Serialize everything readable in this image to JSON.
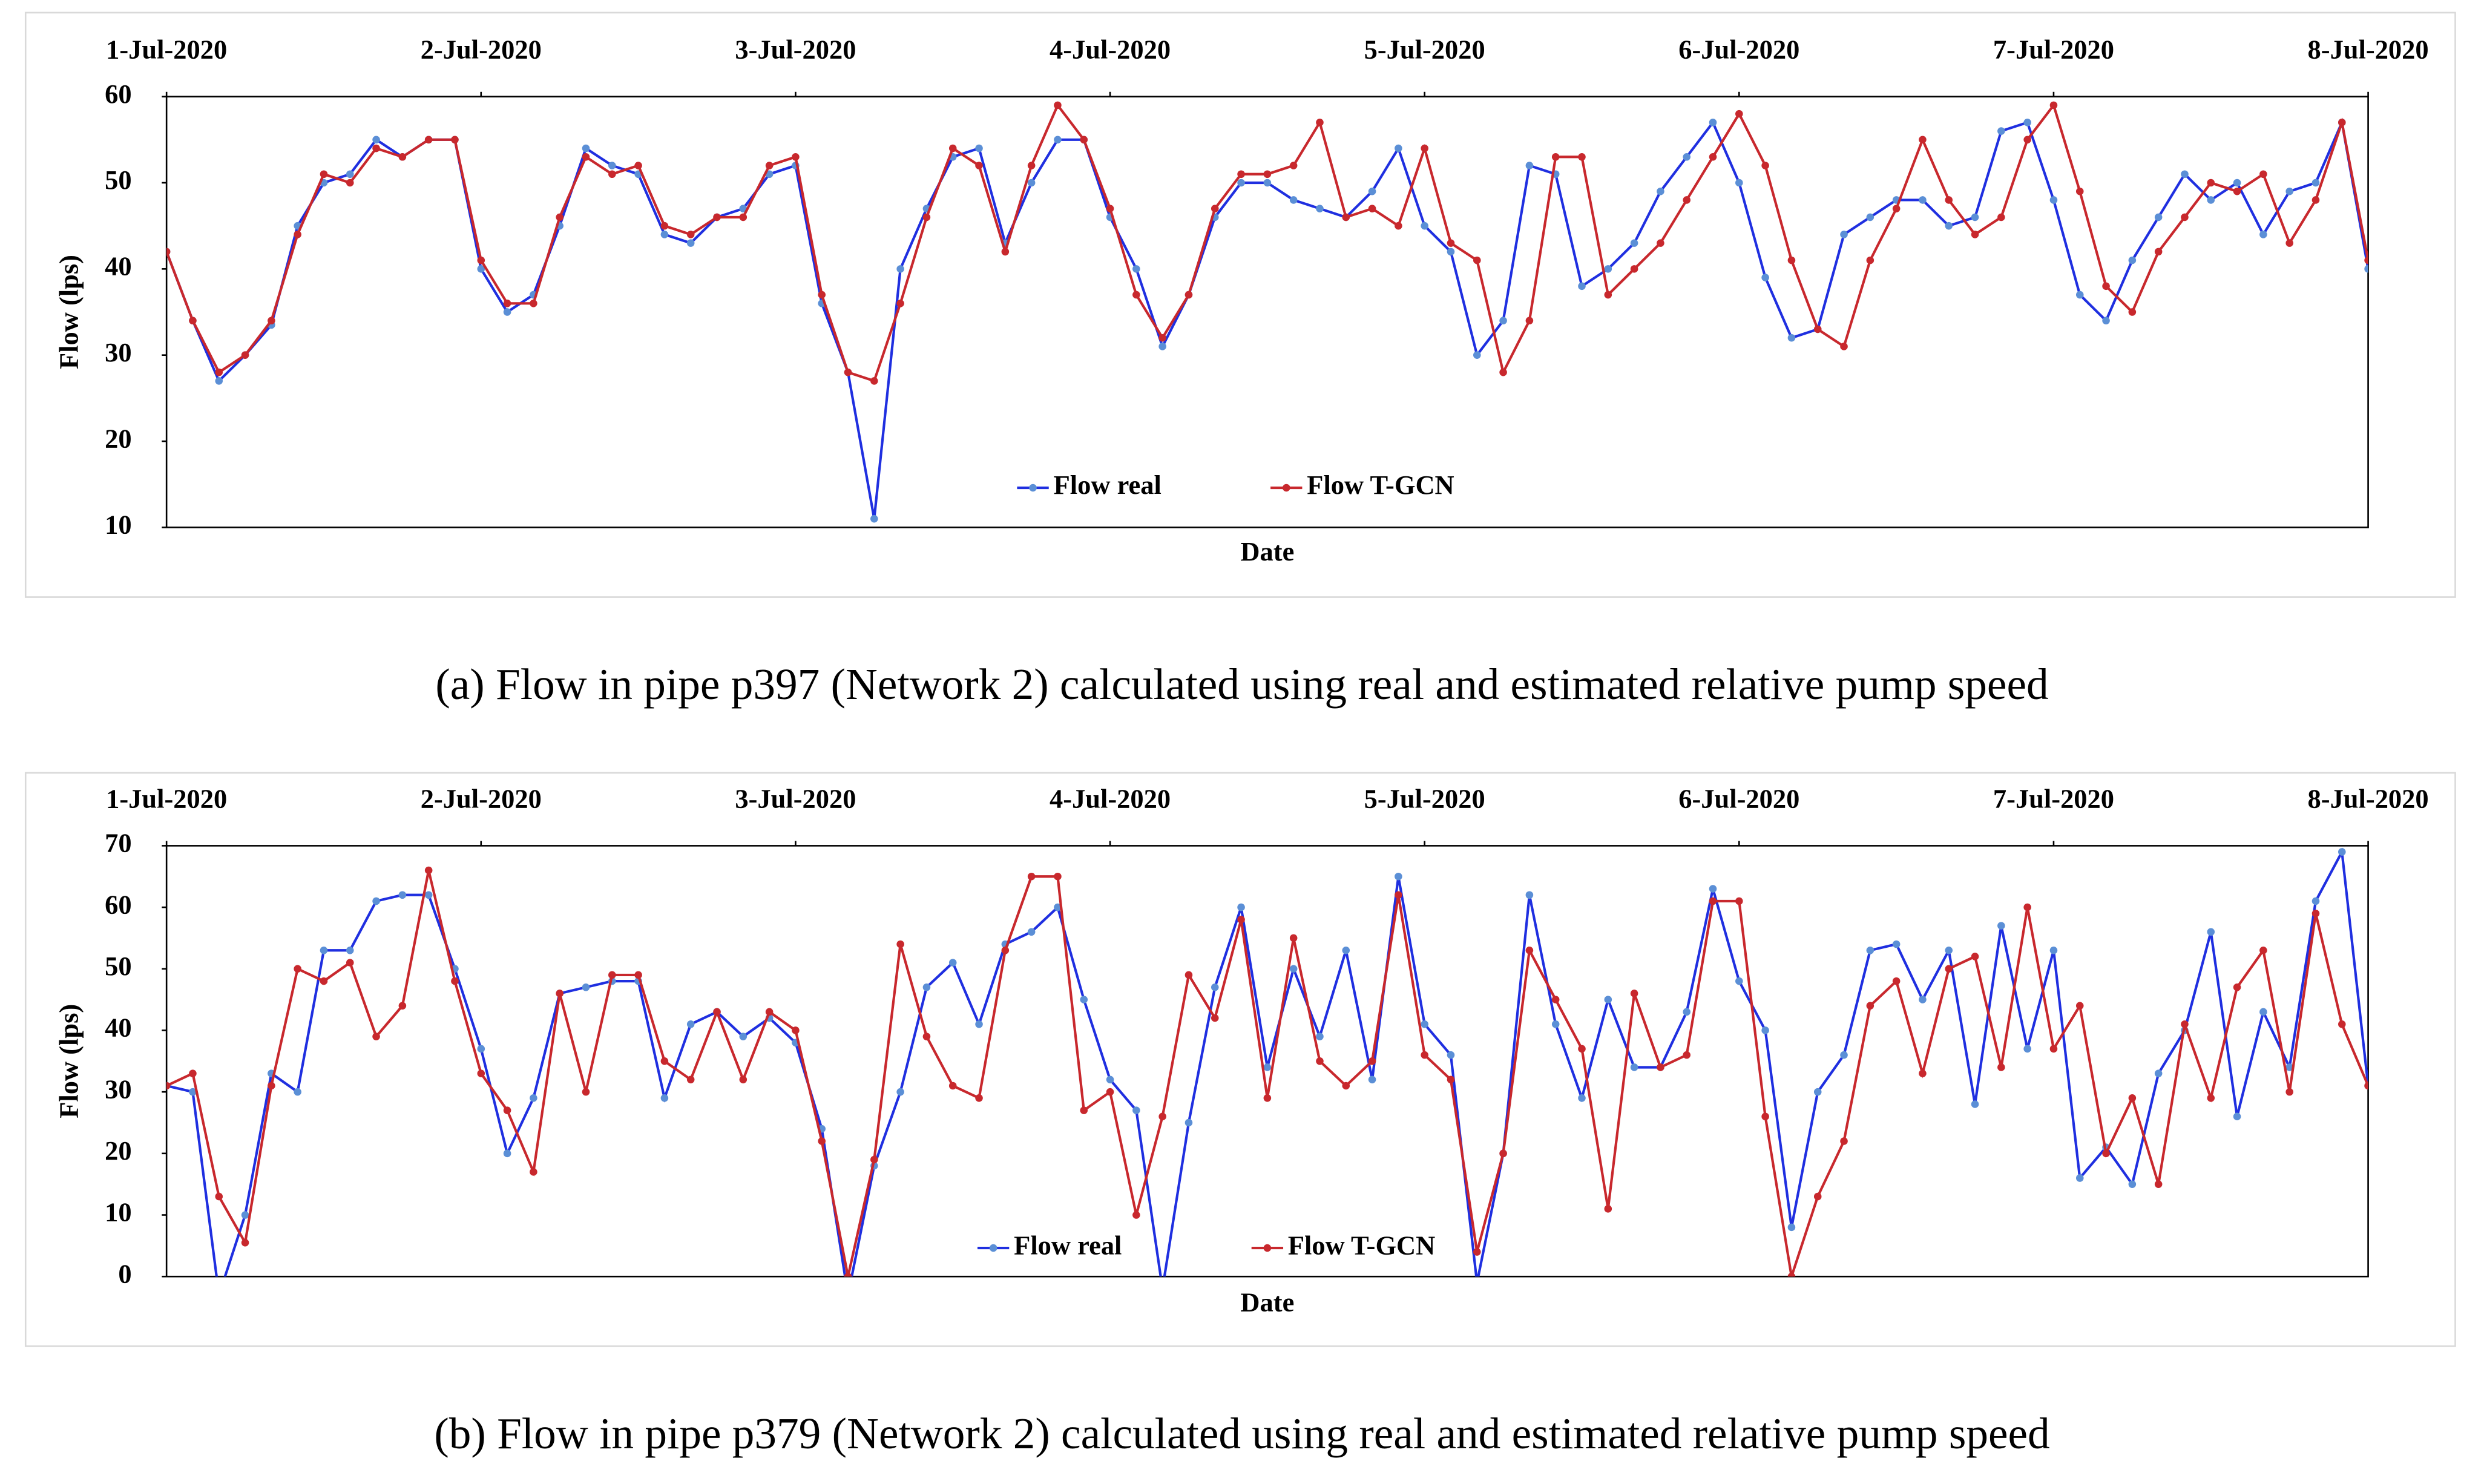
{
  "chart_data": [
    {
      "type": "line",
      "caption": "(a) Flow in pipe p397 (Network 2) calculated using real and estimated relative pump speed",
      "x_label": "Date",
      "y_label": "Flow (lps)",
      "x": [
        0,
        2,
        4,
        6,
        8,
        10,
        12,
        14,
        16,
        18,
        20,
        22,
        24,
        26,
        28,
        30,
        32,
        34,
        36,
        38,
        40,
        42,
        44,
        46,
        48,
        50,
        52,
        54,
        56,
        58,
        60,
        62,
        64,
        66,
        68,
        70,
        72,
        74,
        76,
        78,
        80,
        82,
        84,
        86,
        88,
        90,
        92,
        94,
        96,
        98,
        100,
        102,
        104,
        106,
        108,
        110,
        112,
        114,
        116,
        118,
        120,
        122,
        124,
        126,
        128,
        130,
        132,
        134,
        136,
        138,
        140,
        142,
        144,
        146,
        148,
        150,
        152,
        154,
        156,
        158,
        160,
        162,
        164,
        166,
        168
      ],
      "xlim": [
        0,
        168
      ],
      "xticks": [
        {
          "value": 0,
          "label": "1-Jul-2020"
        },
        {
          "value": 24,
          "label": "2-Jul-2020"
        },
        {
          "value": 48,
          "label": "3-Jul-2020"
        },
        {
          "value": 72,
          "label": "4-Jul-2020"
        },
        {
          "value": 96,
          "label": "5-Jul-2020"
        },
        {
          "value": 120,
          "label": "6-Jul-2020"
        },
        {
          "value": 144,
          "label": "7-Jul-2020"
        },
        {
          "value": 168,
          "label": "8-Jul-2020"
        }
      ],
      "ylim": [
        10,
        60
      ],
      "yticks": [
        10,
        20,
        30,
        40,
        50,
        60
      ],
      "grid": false,
      "legend": "lower center",
      "series": [
        {
          "name": "Flow real",
          "color": "#1f2fe0",
          "marker_color": "#5b8fd6",
          "values": [
            42,
            34,
            27,
            30,
            33.5,
            45,
            50,
            51,
            55,
            53,
            55,
            55,
            40,
            35,
            37,
            45,
            54,
            52,
            51,
            44,
            43,
            46,
            47,
            51,
            52,
            36,
            28,
            11,
            40,
            47,
            53,
            54,
            43,
            50,
            55,
            55,
            46,
            40,
            31,
            37,
            46,
            50,
            50,
            48,
            47,
            46,
            49,
            54,
            45,
            42,
            30,
            34,
            52,
            51,
            38,
            40,
            43,
            49,
            53,
            57,
            50,
            39,
            32,
            33,
            44,
            46,
            48,
            48,
            45,
            46,
            56,
            57,
            48,
            37,
            34,
            41,
            46,
            51,
            48,
            50,
            44,
            49,
            50,
            57,
            40
          ]
        },
        {
          "name": "Flow T-GCN",
          "color": "#c8282d",
          "marker_color": "#c8282d",
          "values": [
            42,
            34,
            28,
            30,
            34,
            44,
            51,
            50,
            54,
            53,
            55,
            55,
            41,
            36,
            36,
            46,
            53,
            51,
            52,
            45,
            44,
            46,
            46,
            52,
            53,
            37,
            28,
            27,
            36,
            46,
            54,
            52,
            42,
            52,
            59,
            55,
            47,
            37,
            32,
            37,
            47,
            51,
            51,
            52,
            57,
            46,
            47,
            45,
            54,
            43,
            41,
            28,
            34,
            53,
            53,
            37,
            40,
            43,
            48,
            53,
            58,
            52,
            41,
            33,
            31,
            41,
            47,
            55,
            48,
            44,
            46,
            55,
            59,
            49,
            38,
            35,
            42,
            46,
            50,
            49,
            51,
            43,
            48,
            57,
            41
          ]
        }
      ]
    },
    {
      "type": "line",
      "caption": "(b) Flow in pipe p379 (Network 2) calculated using real and estimated relative pump speed",
      "x_label": "Date",
      "y_label": "Flow (lps)",
      "x": [
        0,
        2,
        4,
        6,
        8,
        10,
        12,
        14,
        16,
        18,
        20,
        22,
        24,
        26,
        28,
        30,
        32,
        34,
        36,
        38,
        40,
        42,
        44,
        46,
        48,
        50,
        52,
        54,
        56,
        58,
        60,
        62,
        64,
        66,
        68,
        70,
        72,
        74,
        76,
        78,
        80,
        82,
        84,
        86,
        88,
        90,
        92,
        94,
        96,
        98,
        100,
        102,
        104,
        106,
        108,
        110,
        112,
        114,
        116,
        118,
        120,
        122,
        124,
        126,
        128,
        130,
        132,
        134,
        136,
        138,
        140,
        142,
        144,
        146,
        148,
        150,
        152,
        154,
        156,
        158,
        160,
        162,
        164,
        166,
        168
      ],
      "xlim": [
        0,
        168
      ],
      "xticks": [
        {
          "value": 0,
          "label": "1-Jul-2020"
        },
        {
          "value": 24,
          "label": "2-Jul-2020"
        },
        {
          "value": 48,
          "label": "3-Jul-2020"
        },
        {
          "value": 72,
          "label": "4-Jul-2020"
        },
        {
          "value": 96,
          "label": "5-Jul-2020"
        },
        {
          "value": 120,
          "label": "6-Jul-2020"
        },
        {
          "value": 144,
          "label": "7-Jul-2020"
        },
        {
          "value": 168,
          "label": "8-Jul-2020"
        }
      ],
      "ylim": [
        0,
        70
      ],
      "yticks": [
        0,
        10,
        20,
        30,
        40,
        50,
        60,
        70
      ],
      "grid": false,
      "legend": "lower center",
      "series": [
        {
          "name": "Flow real",
          "color": "#1f2fe0",
          "marker_color": "#5b8fd6",
          "values": [
            31,
            30,
            -3,
            10,
            33,
            30,
            53,
            53,
            61,
            62,
            62,
            50,
            37,
            20,
            29,
            46,
            47,
            48,
            48,
            29,
            41,
            43,
            39,
            42,
            38,
            24,
            -3,
            18,
            30,
            47,
            51,
            41,
            54,
            56,
            60,
            45,
            32,
            27,
            -2,
            25,
            47,
            60,
            34,
            50,
            39,
            53,
            32,
            65,
            41,
            36,
            -1,
            20,
            62,
            41,
            29,
            45,
            34,
            34,
            43,
            63,
            48,
            40,
            8,
            30,
            36,
            53,
            54,
            45,
            53,
            28,
            57,
            37,
            53,
            16,
            21,
            15,
            33,
            40,
            56,
            26,
            43,
            34,
            61,
            69,
            31
          ]
        },
        {
          "name": "Flow T-GCN",
          "color": "#c8282d",
          "marker_color": "#c8282d",
          "values": [
            31,
            33,
            13,
            5.5,
            31,
            50,
            48,
            51,
            39,
            44,
            66,
            48,
            33,
            27,
            17,
            46,
            30,
            49,
            49,
            35,
            32,
            43,
            32,
            43,
            40,
            22,
            0,
            19,
            54,
            39,
            31,
            29,
            53,
            65,
            65,
            27,
            30,
            10,
            26,
            49,
            42,
            58,
            29,
            55,
            35,
            31,
            35,
            62,
            36,
            32,
            4,
            20,
            53,
            45,
            37,
            11,
            46,
            34,
            36,
            61,
            61,
            26,
            0,
            13,
            22,
            44,
            48,
            33,
            50,
            52,
            34,
            60,
            37,
            44,
            20,
            29,
            15,
            41,
            29,
            47,
            53,
            30,
            59,
            41,
            31
          ]
        }
      ]
    }
  ]
}
